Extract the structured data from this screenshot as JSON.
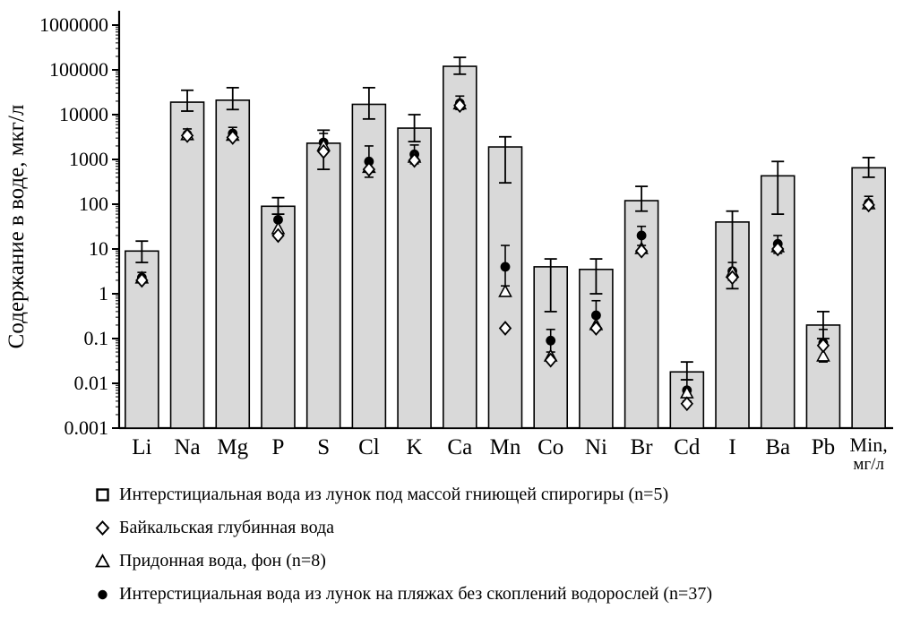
{
  "chart_data": {
    "type": "bar",
    "title": "",
    "xlabel": "",
    "ylabel": "Содержание в воде, мкг/л",
    "y_scale": "log",
    "ylim": [
      0.001,
      1000000
    ],
    "y_ticks": [
      0.001,
      0.01,
      0.1,
      1,
      10,
      100,
      1000,
      10000,
      100000,
      1000000
    ],
    "grid": false,
    "legend_position": "bottom",
    "colors": {
      "bar_fill": "#d9d9d9",
      "stroke": "#000000",
      "background": "#ffffff"
    },
    "categories": [
      "Li",
      "Na",
      "Mg",
      "P",
      "S",
      "Cl",
      "K",
      "Ca",
      "Mn",
      "Co",
      "Ni",
      "Br",
      "Cd",
      "I",
      "Ba",
      "Pb",
      "Min,\nмг/л"
    ],
    "series": [
      {
        "name": "Интерстициальная вода из лунок под массой гниющей спирогиры (n=5)",
        "marker": "bar",
        "values": [
          9,
          19000,
          21000,
          90,
          2300,
          17000,
          5000,
          120000,
          1900,
          4,
          3.5,
          120,
          0.018,
          40,
          430,
          0.2,
          650
        ],
        "err_low": [
          5,
          12000,
          13000,
          60,
          600,
          8000,
          2500,
          80000,
          300,
          0.4,
          1,
          70,
          0.012,
          1.3,
          60,
          0.1,
          400
        ],
        "err_high": [
          15,
          35000,
          40000,
          140,
          4500,
          40000,
          10000,
          190000,
          3200,
          6,
          6,
          250,
          0.03,
          70,
          900,
          0.4,
          1100
        ]
      },
      {
        "name": "Байкальская глубинная вода",
        "marker": "diamond",
        "values": [
          2,
          3400,
          3100,
          20,
          1500,
          600,
          950,
          16000,
          0.17,
          0.033,
          0.17,
          9,
          0.0035,
          2.3,
          10,
          0.07,
          96
        ]
      },
      {
        "name": "Придонная вода, фон (n=8)",
        "marker": "triangle",
        "values": [
          2.2,
          3500,
          3400,
          28,
          2000,
          650,
          1100,
          17000,
          1.1,
          0.04,
          0.2,
          10,
          0.006,
          3,
          11,
          0.04,
          100
        ]
      },
      {
        "name": "Интерстициальная вода из лунок на пляжах без скоплений водорослей (n=37)",
        "marker": "circle",
        "values": [
          2.3,
          3600,
          3800,
          45,
          2400,
          900,
          1300,
          18000,
          4,
          0.09,
          0.33,
          20,
          0.007,
          3.2,
          13,
          0.08,
          105
        ],
        "err_low": [
          1.8,
          2800,
          2800,
          25,
          1500,
          400,
          800,
          13000,
          1.5,
          0.05,
          0.15,
          12,
          0.004,
          2,
          8,
          0.03,
          80
        ],
        "err_high": [
          3,
          4800,
          5200,
          90,
          3800,
          2000,
          2100,
          26000,
          12,
          0.16,
          0.7,
          32,
          0.012,
          5,
          20,
          0.16,
          150
        ]
      }
    ]
  }
}
